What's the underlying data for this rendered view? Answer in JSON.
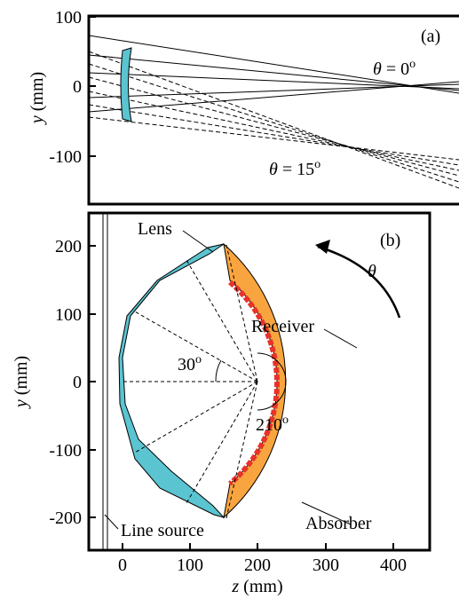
{
  "panel_a": {
    "label": "(a)",
    "y_axis": {
      "title_var": "y",
      "title_unit": "(mm)",
      "ticks": [
        "100",
        "0",
        "-100"
      ]
    },
    "ann_theta0": {
      "var": "θ",
      "text": " = 0",
      "sup": "o"
    },
    "ann_theta15": {
      "var": "θ",
      "text": " = 15",
      "sup": "o"
    }
  },
  "panel_b": {
    "label": "(b)",
    "y_axis": {
      "title_var": "y",
      "title_unit": "(mm)",
      "ticks": [
        "200",
        "100",
        "0",
        "-100",
        "-200"
      ]
    },
    "x_axis": {
      "title_var": "z",
      "title_unit": "(mm)",
      "ticks": [
        "0",
        "100",
        "200",
        "300",
        "400"
      ]
    },
    "labels": {
      "lens": "Lens",
      "receiver": "Receiver",
      "absorber": "Absorber",
      "line_source": "Line source",
      "theta": "θ",
      "angle_30": {
        "text": "30",
        "sup": "o"
      },
      "angle_210": {
        "text": "210",
        "sup": "o"
      }
    }
  },
  "colors": {
    "lens": "#5bc4d1",
    "absorber": "#f9a53f",
    "receiver": "#e8322a",
    "frame": "#000000"
  }
}
